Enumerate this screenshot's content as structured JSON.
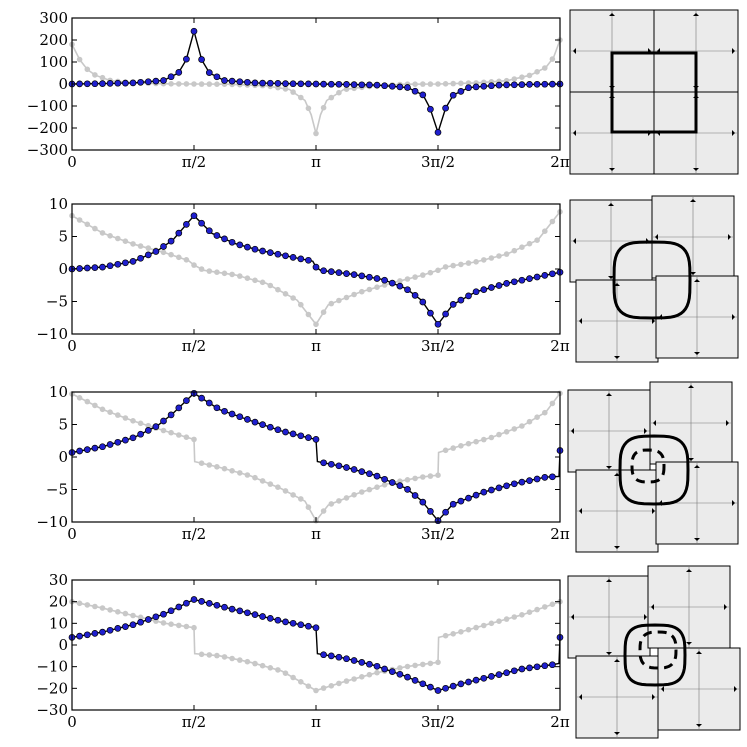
{
  "chart_data": [
    {
      "type": "line",
      "ylim": [
        -300,
        300
      ],
      "yticks": [
        "300",
        "200",
        "100",
        "0",
        "−100",
        "−200",
        "−300"
      ],
      "xticks": [
        "0",
        "π/2",
        "π",
        "3π/2",
        "2π"
      ],
      "xlim": [
        0,
        6.2832
      ],
      "series": [
        {
          "style": "black curve with blue dots",
          "x": [
            0,
            0.39,
            0.79,
            1.18,
            1.37,
            1.47,
            1.5708,
            1.67,
            1.77,
            1.96,
            2.36,
            2.75,
            3.14,
            3.53,
            3.93,
            4.32,
            4.52,
            4.61,
            4.7124,
            4.81,
            4.91,
            5.11,
            5.5,
            5.89,
            6.2832
          ],
          "y": [
            0,
            2,
            5,
            16,
            50,
            110,
            240,
            110,
            50,
            16,
            5,
            2,
            0,
            -2,
            -5,
            -16,
            -50,
            -110,
            -220,
            -110,
            -50,
            -16,
            -5,
            -2,
            0
          ]
        },
        {
          "style": "light gray dotted",
          "x": [
            0,
            0.1,
            0.2,
            0.3,
            0.5,
            0.8,
            1.2,
            1.57,
            2.0,
            2.5,
            2.8,
            3.0,
            3.08,
            3.1416,
            3.2,
            3.28,
            3.5,
            3.9,
            4.3,
            4.7124,
            5.2,
            5.6,
            5.9,
            6.1,
            6.2,
            6.2832
          ],
          "y": [
            180,
            110,
            65,
            40,
            15,
            5,
            1,
            0,
            -1,
            -8,
            -25,
            -75,
            -140,
            -225,
            -140,
            -75,
            -25,
            -8,
            -1,
            0,
            5,
            15,
            40,
            75,
            120,
            200
          ]
        }
      ]
    },
    {
      "type": "line",
      "ylim": [
        -10,
        10
      ],
      "yticks": [
        "10",
        "5",
        "0",
        "−5",
        "−10"
      ],
      "xticks": [
        "0",
        "π/2",
        "π",
        "3π/2",
        "2π"
      ],
      "xlim": [
        0,
        6.2832
      ],
      "series": [
        {
          "style": "black curve with blue dots",
          "x": [
            0,
            0.4,
            0.8,
            1.1,
            1.3,
            1.5708,
            1.8,
            2.1,
            2.4,
            2.8,
            3.1,
            3.1416,
            3.2,
            3.6,
            4.0,
            4.3,
            4.5,
            4.7124,
            4.9,
            5.2,
            5.6,
            6.0,
            6.2832
          ],
          "y": [
            0,
            0.3,
            1.2,
            2.8,
            4.5,
            8.2,
            5.5,
            3.9,
            2.9,
            1.9,
            1.2,
            0.3,
            -0.2,
            -0.8,
            -1.6,
            -3.0,
            -4.8,
            -8.5,
            -5.5,
            -3.5,
            -2.2,
            -1.2,
            -0.5
          ]
        },
        {
          "style": "light gray dotted",
          "x": [
            0,
            0.4,
            0.8,
            1.2,
            1.5,
            1.5708,
            1.7,
            2.1,
            2.5,
            2.9,
            3.1416,
            3.3,
            3.7,
            4.1,
            4.5,
            4.7124,
            4.8,
            5.2,
            5.6,
            6.0,
            6.2832
          ],
          "y": [
            8.2,
            5.5,
            3.8,
            2.5,
            1.3,
            0.6,
            -0.2,
            -0.9,
            -2.2,
            -4.8,
            -8.5,
            -5.5,
            -3.6,
            -2.2,
            -1.0,
            -0.2,
            0.3,
            1.1,
            2.3,
            4.5,
            8.8
          ]
        }
      ]
    },
    {
      "type": "line",
      "ylim": [
        -10,
        10
      ],
      "yticks": [
        "10",
        "5",
        "0",
        "−5",
        "−10"
      ],
      "xticks": [
        "0",
        "π/2",
        "π",
        "3π/2",
        "2π"
      ],
      "xlim": [
        0,
        6.2832
      ],
      "series": [
        {
          "style": "black curve with blue dots",
          "x": [
            0,
            0.4,
            0.8,
            1.1,
            1.3,
            1.5708,
            1.9,
            2.3,
            2.7,
            3.0,
            3.1416,
            3.16,
            3.5,
            3.9,
            4.3,
            4.5,
            4.7124,
            4.9,
            5.3,
            5.7,
            6.1,
            6.27,
            6.2832
          ],
          "y": [
            0.7,
            1.6,
            3.0,
            4.8,
            6.7,
            9.8,
            7.3,
            5.6,
            4.0,
            3.1,
            2.7,
            -0.7,
            -1.5,
            -2.8,
            -4.8,
            -6.7,
            -9.8,
            -7.3,
            -5.4,
            -4.1,
            -3.1,
            -3.0,
            1.0
          ]
        },
        {
          "style": "light gray dotted",
          "x": [
            0,
            0.4,
            0.8,
            1.2,
            1.5708,
            1.58,
            1.9,
            2.3,
            2.7,
            3.0,
            3.1416,
            3.3,
            3.7,
            4.1,
            4.5,
            4.7124,
            4.72,
            5.0,
            5.4,
            5.8,
            6.1,
            6.2832
          ],
          "y": [
            9.7,
            7.3,
            5.5,
            4.0,
            2.7,
            -0.7,
            -1.6,
            -2.9,
            -4.9,
            -6.8,
            -9.8,
            -7.4,
            -5.5,
            -4.0,
            -3.1,
            -2.8,
            0.7,
            1.7,
            3.0,
            4.8,
            6.9,
            9.8
          ]
        }
      ]
    },
    {
      "type": "line",
      "ylim": [
        -30,
        30
      ],
      "yticks": [
        "30",
        "20",
        "10",
        "0",
        "−10",
        "−20",
        "−30"
      ],
      "xticks": [
        "0",
        "π/2",
        "π",
        "3π/2",
        "2π"
      ],
      "xlim": [
        0,
        6.2832
      ],
      "series": [
        {
          "style": "black curve with blue dots",
          "x": [
            0,
            0.4,
            0.8,
            1.2,
            1.5708,
            1.9,
            2.3,
            2.7,
            3.0,
            3.1416,
            3.16,
            3.5,
            3.9,
            4.3,
            4.7124,
            5.0,
            5.4,
            5.8,
            6.2,
            6.27,
            6.2832
          ],
          "y": [
            3.5,
            6,
            9.5,
            14.5,
            21,
            18,
            14.5,
            11,
            9,
            8,
            -4,
            -6,
            -9.5,
            -14.5,
            -21,
            -18,
            -14.5,
            -11,
            -9,
            -8.5,
            3.5
          ]
        },
        {
          "style": "light gray dotted",
          "x": [
            0,
            0.4,
            0.8,
            1.2,
            1.5708,
            1.58,
            1.9,
            2.3,
            2.7,
            3.1416,
            3.5,
            3.9,
            4.3,
            4.7124,
            4.72,
            5.0,
            5.4,
            5.8,
            6.2832
          ],
          "y": [
            20,
            17,
            13.5,
            10,
            8,
            -4,
            -5,
            -8,
            -12,
            -21,
            -17,
            -13,
            -10,
            -8,
            3.5,
            6,
            10,
            14,
            20
          ]
        }
      ]
    }
  ],
  "insets": [
    {
      "curve": "square",
      "dashed": false
    },
    {
      "curve": "rounded-square",
      "dashed": false
    },
    {
      "curve": "rounded-square",
      "dashed": true
    },
    {
      "curve": "rounded-square",
      "dashed": true
    }
  ]
}
